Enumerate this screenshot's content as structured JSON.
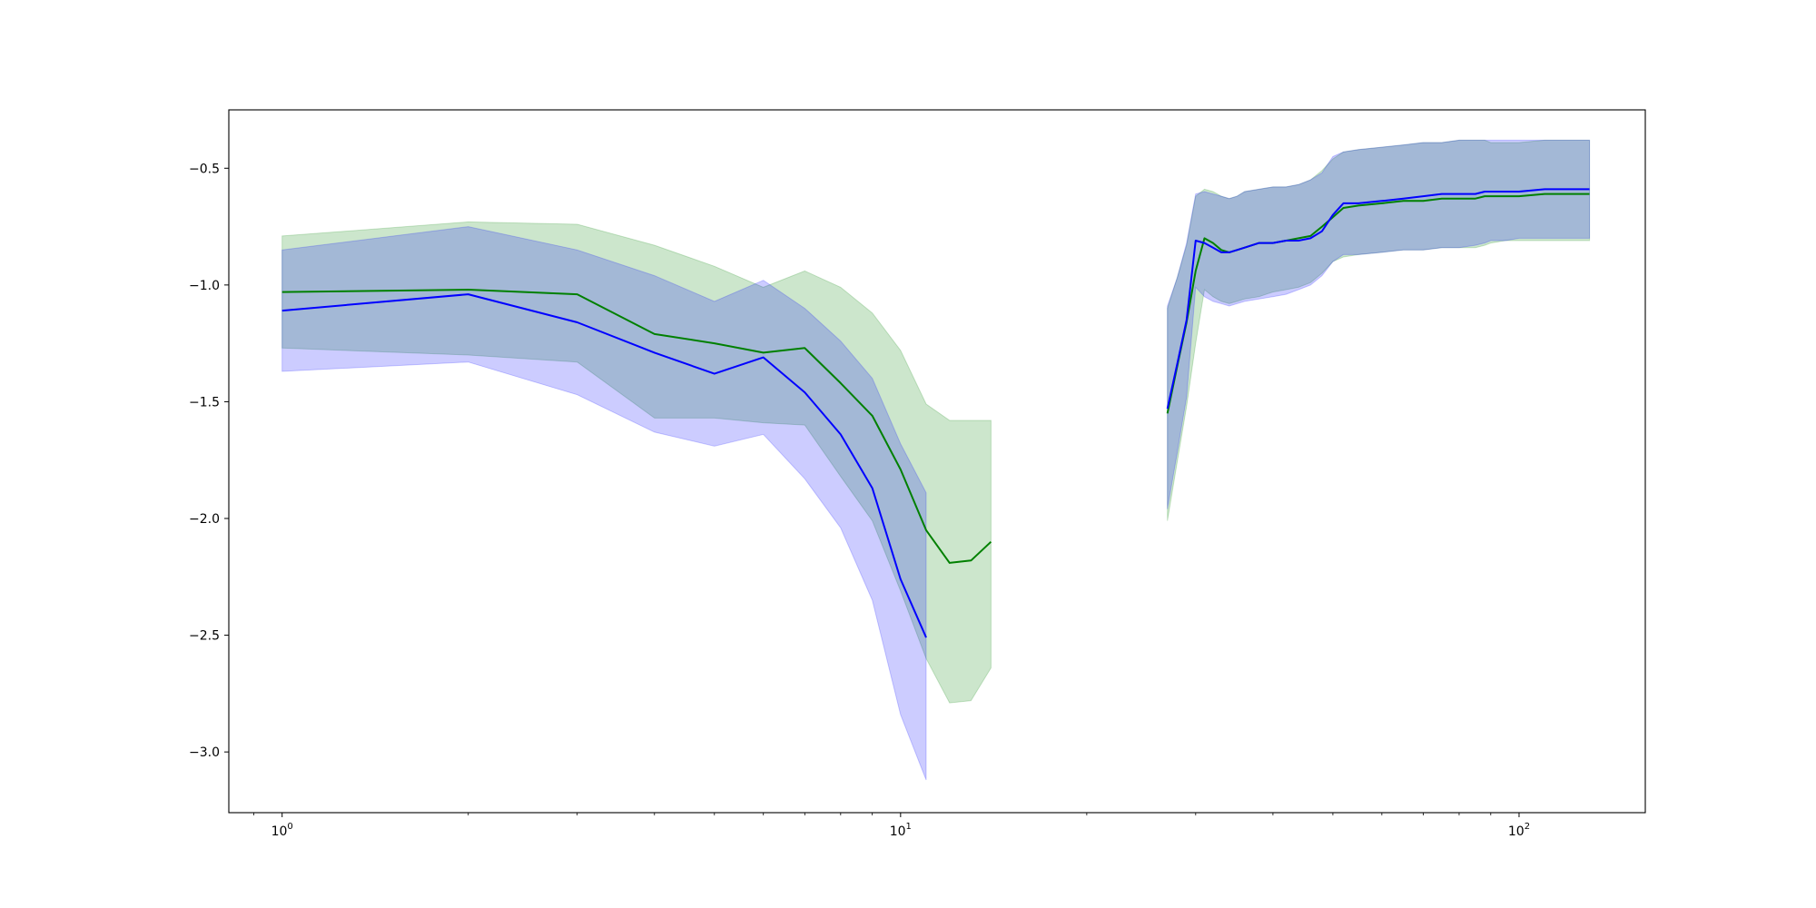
{
  "chart_data": {
    "type": "line",
    "title": "",
    "xlabel": "",
    "ylabel": "",
    "x_scale": "log",
    "xlim": [
      0.82,
      160
    ],
    "ylim": [
      -3.26,
      -0.25
    ],
    "y_ticks": [
      -0.5,
      -1.0,
      -1.5,
      -2.0,
      -2.5,
      -3.0
    ],
    "y_tick_labels": [
      "−0.5",
      "−1.0",
      "−1.5",
      "−2.0",
      "−2.5",
      "−3.0"
    ],
    "x_ticks": [
      {
        "value": 1,
        "base": "10",
        "exp": "0"
      },
      {
        "value": 10,
        "base": "10",
        "exp": "1"
      },
      {
        "value": 100,
        "base": "10",
        "exp": "2"
      }
    ],
    "grid": false,
    "legend": "none",
    "series": [
      {
        "color": "#008000",
        "band_color": "#008000",
        "segments": [
          {
            "x": [
              1,
              2,
              3,
              4,
              5,
              6,
              7,
              8,
              9,
              10,
              11,
              12,
              13,
              14
            ],
            "y": [
              -1.03,
              -1.02,
              -1.04,
              -1.21,
              -1.25,
              -1.29,
              -1.27,
              -1.42,
              -1.56,
              -1.79,
              -2.05,
              -2.19,
              -2.18,
              -2.1
            ],
            "upper": [
              -0.79,
              -0.73,
              -0.74,
              -0.83,
              -0.92,
              -1.01,
              -0.94,
              -1.01,
              -1.12,
              -1.28,
              -1.51,
              -1.58,
              -1.58,
              -1.58
            ],
            "lower": [
              -1.27,
              -1.3,
              -1.33,
              -1.57,
              -1.57,
              -1.59,
              -1.6,
              -1.82,
              -2.01,
              -2.31,
              -2.6,
              -2.79,
              -2.78,
              -2.64
            ]
          },
          {
            "x": [
              27,
              28,
              29,
              30,
              31,
              32,
              33,
              34,
              35,
              36,
              38,
              40,
              42,
              44,
              46,
              48,
              50,
              52,
              55,
              60,
              65,
              70,
              75,
              80,
              85,
              88,
              90,
              95,
              100,
              110,
              120,
              130
            ],
            "y": [
              -1.55,
              -1.35,
              -1.16,
              -0.94,
              -0.8,
              -0.82,
              -0.85,
              -0.86,
              -0.85,
              -0.84,
              -0.82,
              -0.82,
              -0.81,
              -0.8,
              -0.79,
              -0.75,
              -0.71,
              -0.67,
              -0.66,
              -0.65,
              -0.64,
              -0.64,
              -0.63,
              -0.63,
              -0.63,
              -0.62,
              -0.62,
              -0.62,
              -0.62,
              -0.61,
              -0.61,
              -0.61
            ],
            "upper": [
              -1.1,
              -0.97,
              -0.83,
              -0.62,
              -0.59,
              -0.6,
              -0.62,
              -0.63,
              -0.62,
              -0.6,
              -0.59,
              -0.58,
              -0.58,
              -0.57,
              -0.55,
              -0.51,
              -0.46,
              -0.43,
              -0.42,
              -0.41,
              -0.4,
              -0.39,
              -0.39,
              -0.38,
              -0.38,
              -0.38,
              -0.39,
              -0.39,
              -0.39,
              -0.38,
              -0.38,
              -0.38
            ],
            "lower": [
              -2.01,
              -1.76,
              -1.52,
              -1.25,
              -1.02,
              -1.05,
              -1.07,
              -1.08,
              -1.07,
              -1.06,
              -1.05,
              -1.03,
              -1.02,
              -1.01,
              -0.99,
              -0.95,
              -0.9,
              -0.88,
              -0.87,
              -0.86,
              -0.85,
              -0.85,
              -0.84,
              -0.84,
              -0.84,
              -0.83,
              -0.82,
              -0.81,
              -0.81,
              -0.81,
              -0.81,
              -0.81
            ]
          }
        ]
      },
      {
        "color": "#0000ff",
        "band_color": "#0000ff",
        "segments": [
          {
            "x": [
              1,
              2,
              3,
              4,
              5,
              6,
              7,
              8,
              9,
              10,
              11
            ],
            "y": [
              -1.11,
              -1.04,
              -1.16,
              -1.29,
              -1.38,
              -1.31,
              -1.46,
              -1.64,
              -1.87,
              -2.26,
              -2.51
            ],
            "upper": [
              -0.85,
              -0.75,
              -0.85,
              -0.96,
              -1.07,
              -0.98,
              -1.1,
              -1.24,
              -1.4,
              -1.68,
              -1.89
            ],
            "lower": [
              -1.37,
              -1.33,
              -1.47,
              -1.63,
              -1.69,
              -1.64,
              -1.83,
              -2.04,
              -2.35,
              -2.84,
              -3.12
            ]
          },
          {
            "x": [
              27,
              28,
              29,
              30,
              31,
              32,
              33,
              34,
              35,
              36,
              38,
              40,
              42,
              44,
              46,
              48,
              50,
              52,
              55,
              60,
              65,
              70,
              75,
              80,
              85,
              88,
              90,
              95,
              100,
              110,
              120,
              130
            ],
            "y": [
              -1.53,
              -1.34,
              -1.15,
              -0.81,
              -0.82,
              -0.84,
              -0.86,
              -0.86,
              -0.85,
              -0.84,
              -0.82,
              -0.82,
              -0.81,
              -0.81,
              -0.8,
              -0.77,
              -0.7,
              -0.65,
              -0.65,
              -0.64,
              -0.63,
              -0.62,
              -0.61,
              -0.61,
              -0.61,
              -0.6,
              -0.6,
              -0.6,
              -0.6,
              -0.59,
              -0.59,
              -0.59
            ],
            "upper": [
              -1.09,
              -0.97,
              -0.82,
              -0.61,
              -0.6,
              -0.61,
              -0.62,
              -0.63,
              -0.62,
              -0.6,
              -0.59,
              -0.58,
              -0.58,
              -0.57,
              -0.55,
              -0.52,
              -0.45,
              -0.43,
              -0.42,
              -0.41,
              -0.4,
              -0.39,
              -0.39,
              -0.38,
              -0.38,
              -0.38,
              -0.38,
              -0.38,
              -0.38,
              -0.38,
              -0.38,
              -0.38
            ],
            "lower": [
              -1.96,
              -1.72,
              -1.48,
              -1.01,
              -1.05,
              -1.07,
              -1.08,
              -1.09,
              -1.08,
              -1.07,
              -1.06,
              -1.05,
              -1.04,
              -1.02,
              -1.0,
              -0.96,
              -0.9,
              -0.87,
              -0.87,
              -0.86,
              -0.85,
              -0.85,
              -0.84,
              -0.84,
              -0.83,
              -0.82,
              -0.81,
              -0.81,
              -0.8,
              -0.8,
              -0.8,
              -0.8
            ]
          }
        ]
      }
    ]
  }
}
